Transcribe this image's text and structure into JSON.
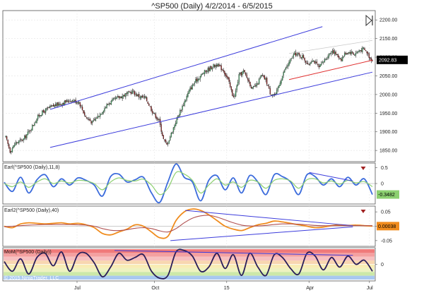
{
  "title": "^SP500 (Daily)  4/2/2014 - 6/5/2015",
  "copyright": "© 2015 NinjaTrader, LLC",
  "colors": {
    "channel": "#3c3cdc",
    "red_line": "#e03030",
    "up_candle": "#40a060",
    "down_candle": "#8a1818",
    "wick": "#222222",
    "blue_osc": "#3c6cdc",
    "green_osc": "#8cd070",
    "orange_osc": "#f08c1e",
    "brown_osc": "#b05050",
    "mom_line": "#2a1e5a",
    "last_price_bg": "#000000",
    "bands": [
      "#f07a7a",
      "#f4a0a0",
      "#f7c0c0",
      "#f8d6b0",
      "#f8ecb4",
      "#eef2c0",
      "#cde8a8",
      "#a8c8f0"
    ]
  },
  "icons": {
    "expand": "expand-arrow-icon",
    "signal": "down-triangle-icon"
  },
  "chart_data": {
    "type": "candlestick",
    "x_ticks": [
      "Jul",
      "Oct",
      "15",
      "Apr",
      "Jul"
    ],
    "price_panel": {
      "ylim": [
        1820,
        2225
      ],
      "y_ticks": [
        "2200.00",
        "2150.00",
        "2100.00",
        "2050.00",
        "2000.00",
        "1950.00",
        "1900.00",
        "1850.00"
      ],
      "last_price": "2092.83",
      "close_anchors": [
        [
          0,
          1885
        ],
        [
          4,
          1848
        ],
        [
          9,
          1870
        ],
        [
          16,
          1880
        ],
        [
          22,
          1905
        ],
        [
          30,
          1945
        ],
        [
          38,
          1962
        ],
        [
          45,
          1972
        ],
        [
          52,
          1978
        ],
        [
          58,
          1985
        ],
        [
          66,
          1980
        ],
        [
          72,
          1940
        ],
        [
          78,
          1925
        ],
        [
          84,
          1945
        ],
        [
          92,
          1975
        ],
        [
          100,
          1990
        ],
        [
          108,
          2000
        ],
        [
          114,
          2008
        ],
        [
          120,
          1995
        ],
        [
          126,
          1990
        ],
        [
          132,
          1955
        ],
        [
          138,
          1930
        ],
        [
          142,
          1880
        ],
        [
          145,
          1865
        ],
        [
          149,
          1895
        ],
        [
          154,
          1935
        ],
        [
          160,
          1975
        ],
        [
          166,
          2015
        ],
        [
          172,
          2040
        ],
        [
          178,
          2058
        ],
        [
          186,
          2075
        ],
        [
          190,
          2080
        ],
        [
          196,
          2065
        ],
        [
          200,
          2040
        ],
        [
          204,
          2000
        ],
        [
          206,
          1995
        ],
        [
          210,
          2050
        ],
        [
          214,
          2062
        ],
        [
          218,
          2040
        ],
        [
          222,
          2015
        ],
        [
          226,
          2025
        ],
        [
          230,
          2050
        ],
        [
          234,
          2040
        ],
        [
          238,
          2005
        ],
        [
          243,
          1998
        ],
        [
          247,
          2035
        ],
        [
          251,
          2065
        ],
        [
          256,
          2090
        ],
        [
          260,
          2110
        ],
        [
          264,
          2105
        ],
        [
          268,
          2100
        ],
        [
          272,
          2078
        ],
        [
          276,
          2095
        ],
        [
          282,
          2072
        ],
        [
          286,
          2088
        ],
        [
          290,
          2105
        ],
        [
          294,
          2118
        ],
        [
          298,
          2105
        ],
        [
          302,
          2095
        ],
        [
          306,
          2112
        ],
        [
          310,
          2114
        ],
        [
          314,
          2108
        ],
        [
          318,
          2118
        ],
        [
          322,
          2122
        ],
        [
          325,
          2113
        ],
        [
          328,
          2097
        ],
        [
          330,
          2093
        ]
      ],
      "channel_upper": [
        [
          40,
          1960
        ],
        [
          285,
          2182
        ]
      ],
      "channel_lower": [
        [
          40,
          1858
        ],
        [
          330,
          2060
        ]
      ],
      "red_line": [
        [
          255,
          2040
        ],
        [
          330,
          2092
        ]
      ],
      "gray_line": [
        [
          255,
          2110
        ],
        [
          330,
          2145
        ]
      ]
    },
    "panels": [
      {
        "name": "Earl(^SP500 (Daily),11,8)",
        "ylim": [
          -0.65,
          0.65
        ],
        "y_ticks": [
          "0.5",
          "0"
        ],
        "last_value": "-0.3482",
        "series": [
          {
            "color": "#3c6cdc",
            "width": 1.8,
            "values": [
              0.04,
              -0.25,
              0.2,
              -0.3,
              0.12,
              0.28,
              -0.1,
              0.15,
              -0.05,
              0.18,
              0.1,
              -0.05,
              -0.4,
              0.22,
              0.3,
              0.05,
              0.12,
              0.2,
              -0.3,
              -0.6,
              0.05,
              0.62,
              0.2,
              0.05,
              -0.55,
              0.1,
              0.25,
              -0.2,
              0.18,
              -0.3,
              0.25,
              0.05,
              -0.35,
              0.28,
              0.22,
              0.05,
              -0.35,
              0.28,
              0.22,
              -0.05,
              0.15,
              -0.1,
              0.2,
              -0.05,
              0.15,
              -0.35
            ]
          },
          {
            "color": "#8cd070",
            "width": 1.2,
            "values": [
              0.0,
              -0.1,
              0.05,
              -0.12,
              0.05,
              0.15,
              0.0,
              0.08,
              0.02,
              0.1,
              0.08,
              0.0,
              -0.2,
              0.05,
              0.18,
              0.1,
              0.08,
              0.14,
              -0.05,
              -0.35,
              -0.15,
              0.35,
              0.3,
              0.1,
              -0.3,
              -0.05,
              0.15,
              -0.05,
              0.05,
              -0.12,
              0.1,
              0.05,
              -0.15,
              0.1,
              0.15,
              0.08,
              -0.15,
              0.12,
              0.15,
              0.02,
              0.08,
              -0.02,
              0.1,
              0.02,
              0.06,
              -0.1
            ]
          }
        ],
        "trendline": [
          [
            0.823,
            0.35
          ],
          [
            0.94,
            0.08
          ]
        ]
      },
      {
        "name": "Earl2(^SP500 (Daily),40)",
        "ylim": [
          -0.07,
          0.07
        ],
        "y_ticks": [
          "0.05",
          "0",
          "-0.05"
        ],
        "last_value": "0.00038",
        "series": [
          {
            "color": "#f08c1e",
            "width": 1.8,
            "values": [
              0.0,
              -0.005,
              0.008,
              0.012,
              0.01,
              0.008,
              0.01,
              0.012,
              0.008,
              0.01,
              0.005,
              -0.005,
              -0.025,
              -0.03,
              -0.02,
              -0.01,
              0.005,
              0.0,
              -0.02,
              -0.04,
              -0.035,
              0.02,
              0.05,
              0.06,
              0.055,
              0.04,
              0.02,
              0.0,
              -0.01,
              -0.015,
              -0.005,
              0.005,
              0.01,
              0.018,
              0.015,
              0.01,
              0.005,
              0.0,
              -0.005,
              -0.003,
              0.002,
              0.005,
              0.003,
              0.004,
              0.002,
              0.0004
            ]
          },
          {
            "color": "#b05050",
            "width": 1.1,
            "values": [
              -0.002,
              0.0,
              0.002,
              0.004,
              0.005,
              0.006,
              0.006,
              0.006,
              0.006,
              0.005,
              0.004,
              0.0,
              -0.008,
              -0.014,
              -0.015,
              -0.012,
              -0.007,
              -0.005,
              -0.008,
              -0.016,
              -0.02,
              -0.008,
              0.012,
              0.028,
              0.036,
              0.038,
              0.032,
              0.022,
              0.012,
              0.004,
              0.001,
              0.001,
              0.003,
              0.006,
              0.008,
              0.008,
              0.007,
              0.005,
              0.003,
              0.002,
              0.002,
              0.002,
              0.002,
              0.002,
              0.002,
              0.002
            ]
          }
        ],
        "trendlines": [
          [
            [
              0.49,
              0.055
            ],
            [
              0.94,
              0.002
            ]
          ],
          [
            [
              0.45,
              -0.05
            ],
            [
              0.94,
              -0.002
            ]
          ]
        ]
      },
      {
        "name": "MoM(^SP500 (Daily))",
        "ylim": [
          -0.12,
          0.12
        ],
        "y_ticks": [
          "0"
        ],
        "series": [
          {
            "color": "#2a1e5a",
            "width": 1.8,
            "values": [
              0.02,
              -0.05,
              0.04,
              -0.07,
              0.05,
              0.08,
              -0.01,
              0.09,
              -0.05,
              0.07,
              0.08,
              0.01,
              -0.09,
              -0.02,
              0.08,
              0.03,
              0.05,
              0.07,
              -0.05,
              -0.1,
              -0.08,
              0.09,
              0.1,
              0.06,
              -0.05,
              -0.02,
              0.08,
              -0.03,
              0.07,
              -0.08,
              0.08,
              -0.02,
              -0.08,
              0.07,
              0.05,
              -0.03,
              -0.07,
              0.08,
              0.06,
              -0.04,
              0.05,
              -0.02,
              0.06,
              0.0,
              0.03,
              -0.05
            ]
          }
        ],
        "trendline": [
          [
            0.3,
            0.1
          ],
          [
            0.94,
            0.065
          ]
        ]
      }
    ]
  }
}
